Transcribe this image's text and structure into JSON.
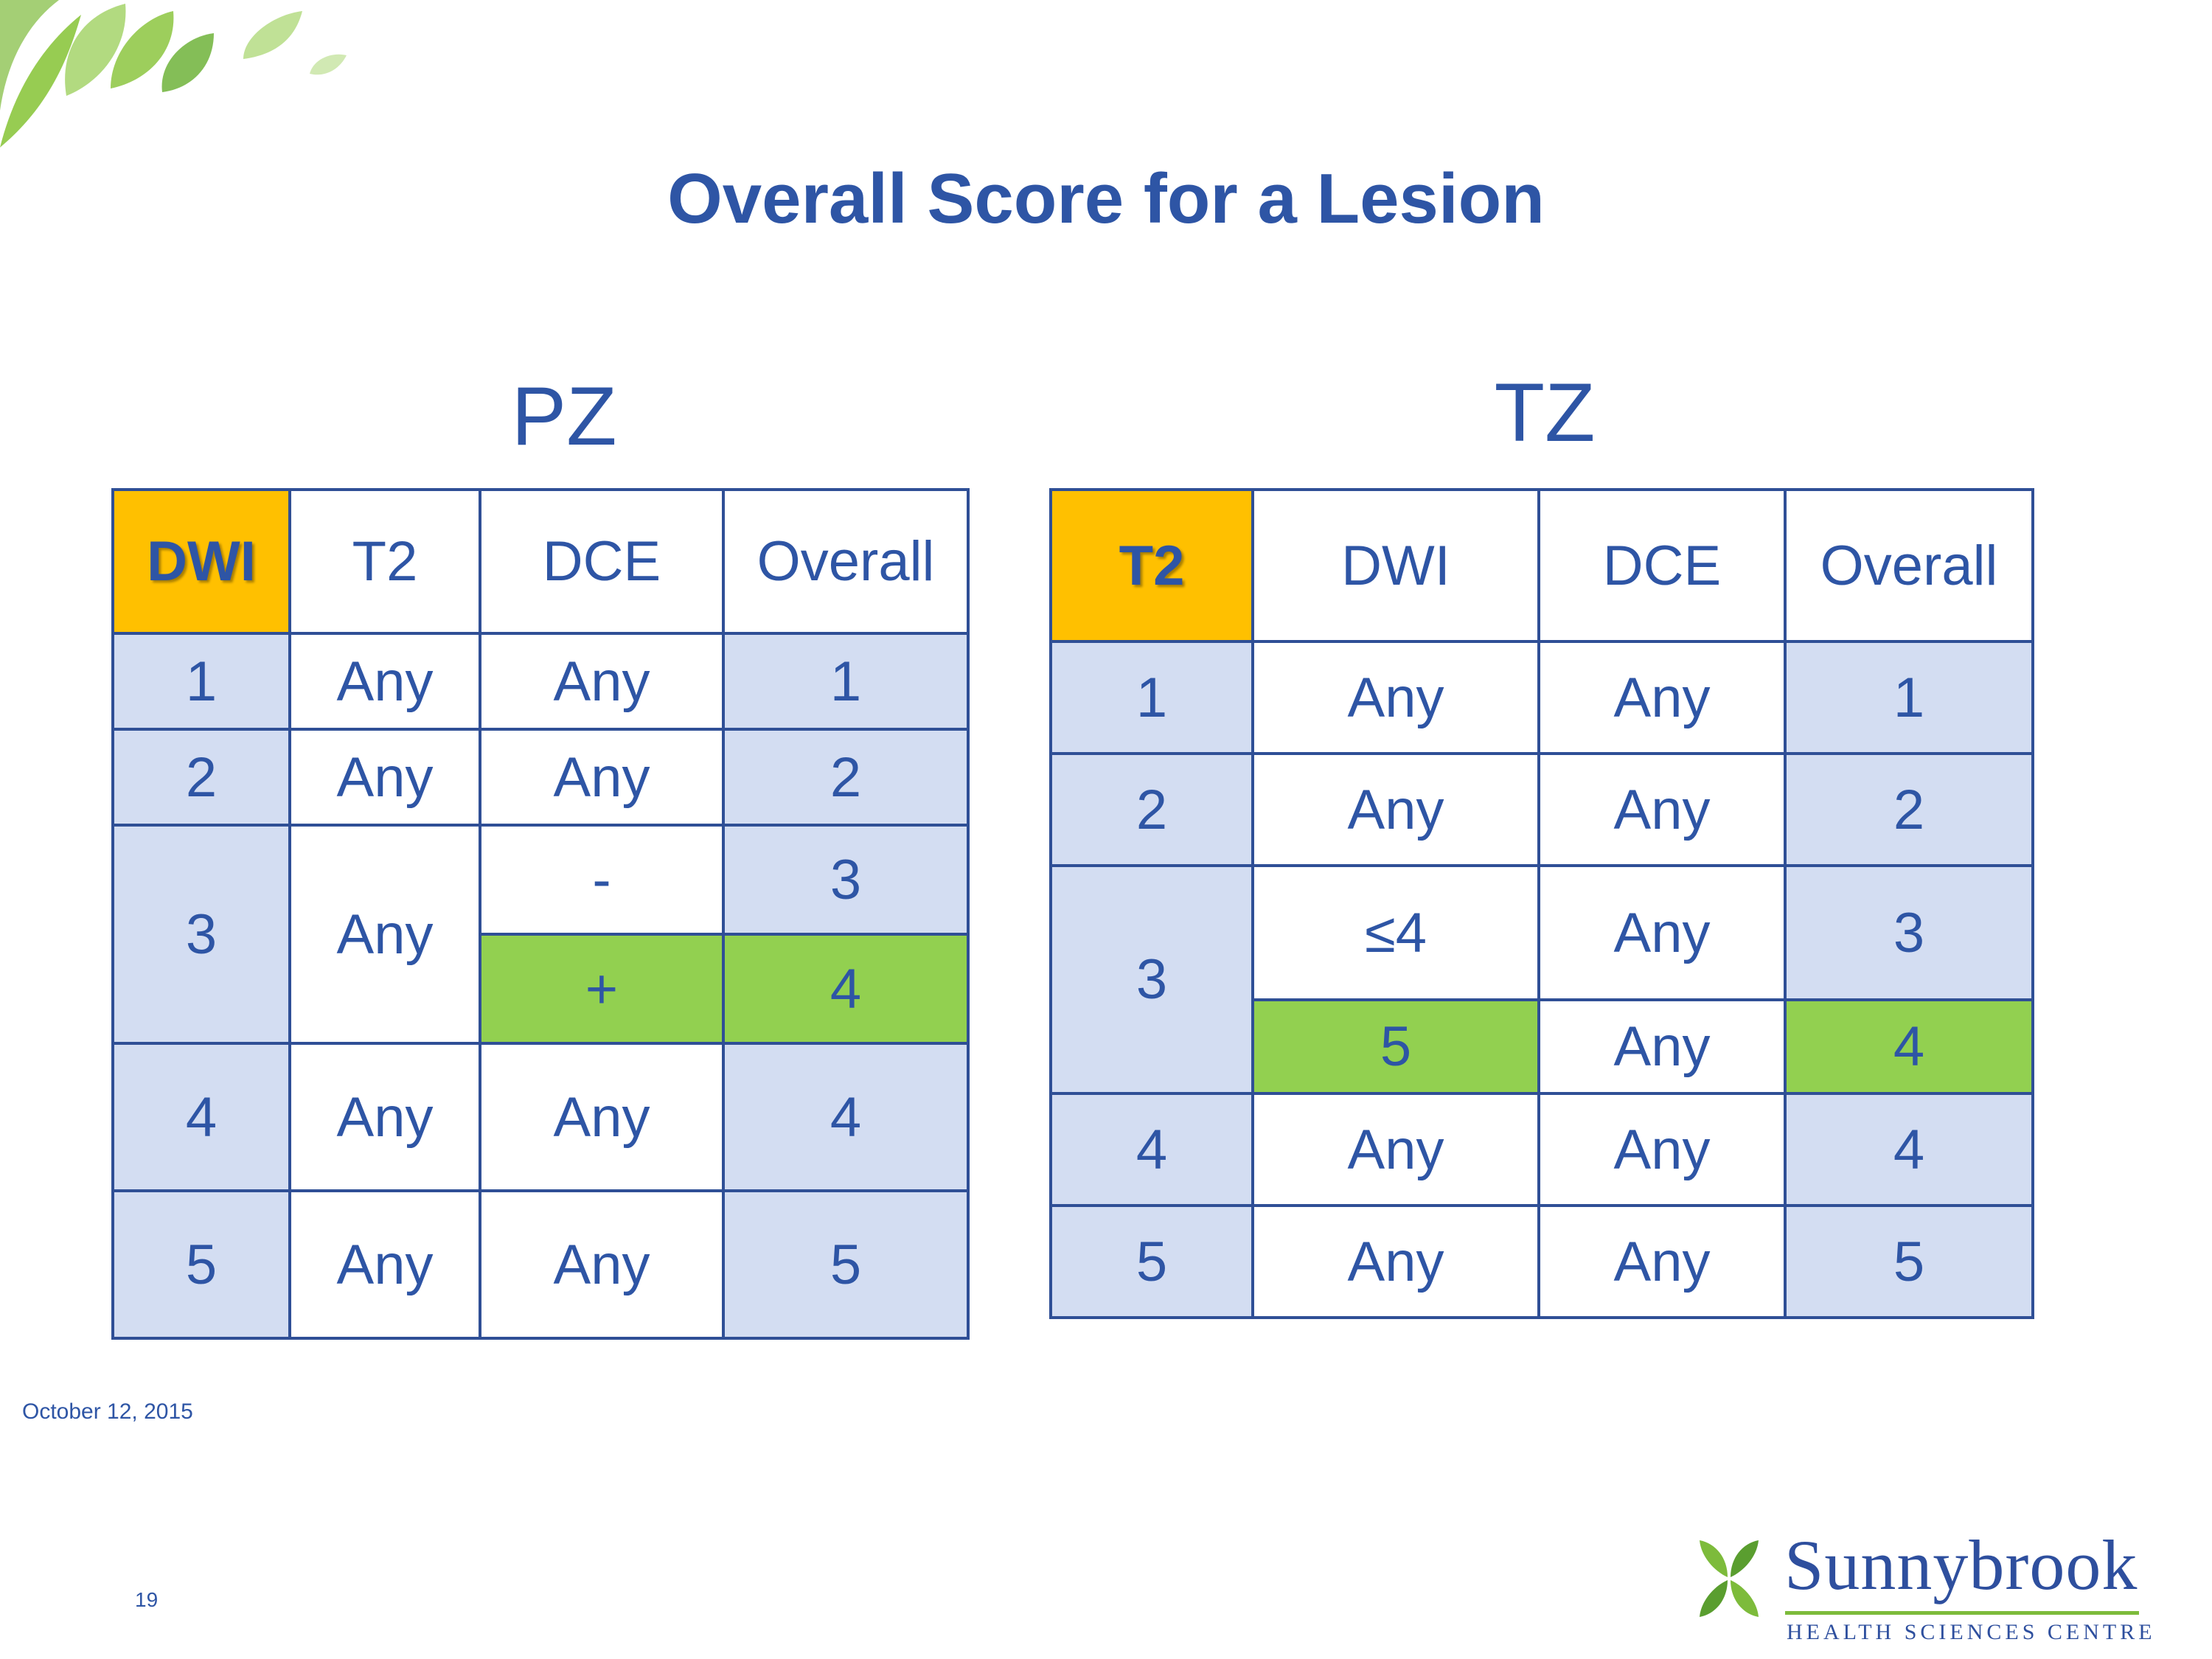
{
  "slide": {
    "title": "Overall Score for a Lesion",
    "date": "October 12, 2015",
    "page_number": "19"
  },
  "logo": {
    "name": "Sunnybrook",
    "tagline": "HEALTH SCIENCES CENTRE"
  },
  "colors": {
    "accent_header": "#ffc000",
    "row_blue": "#d3ddf2",
    "highlight_green": "#92d050",
    "text_blue": "#2e55a5",
    "border": "#2f4f96"
  },
  "pz": {
    "heading": "PZ",
    "headers": [
      "DWI",
      "T2",
      "DCE",
      "Overall"
    ],
    "rows": [
      [
        "1",
        "Any",
        "Any",
        "1"
      ],
      [
        "2",
        "Any",
        "Any",
        "2"
      ],
      [
        "3",
        "Any",
        "-",
        "3"
      ],
      [
        "+",
        "4"
      ],
      [
        "4",
        "Any",
        "Any",
        "4"
      ],
      [
        "5",
        "Any",
        "Any",
        "5"
      ]
    ]
  },
  "tz": {
    "heading": "TZ",
    "headers": [
      "T2",
      "DWI",
      "DCE",
      "Overall"
    ],
    "rows": [
      [
        "1",
        "Any",
        "Any",
        "1"
      ],
      [
        "2",
        "Any",
        "Any",
        "2"
      ],
      [
        "3",
        "≤4",
        "Any",
        "3"
      ],
      [
        "5",
        "Any",
        "4"
      ],
      [
        "4",
        "Any",
        "Any",
        "4"
      ],
      [
        "5",
        "Any",
        "Any",
        "5"
      ]
    ]
  }
}
